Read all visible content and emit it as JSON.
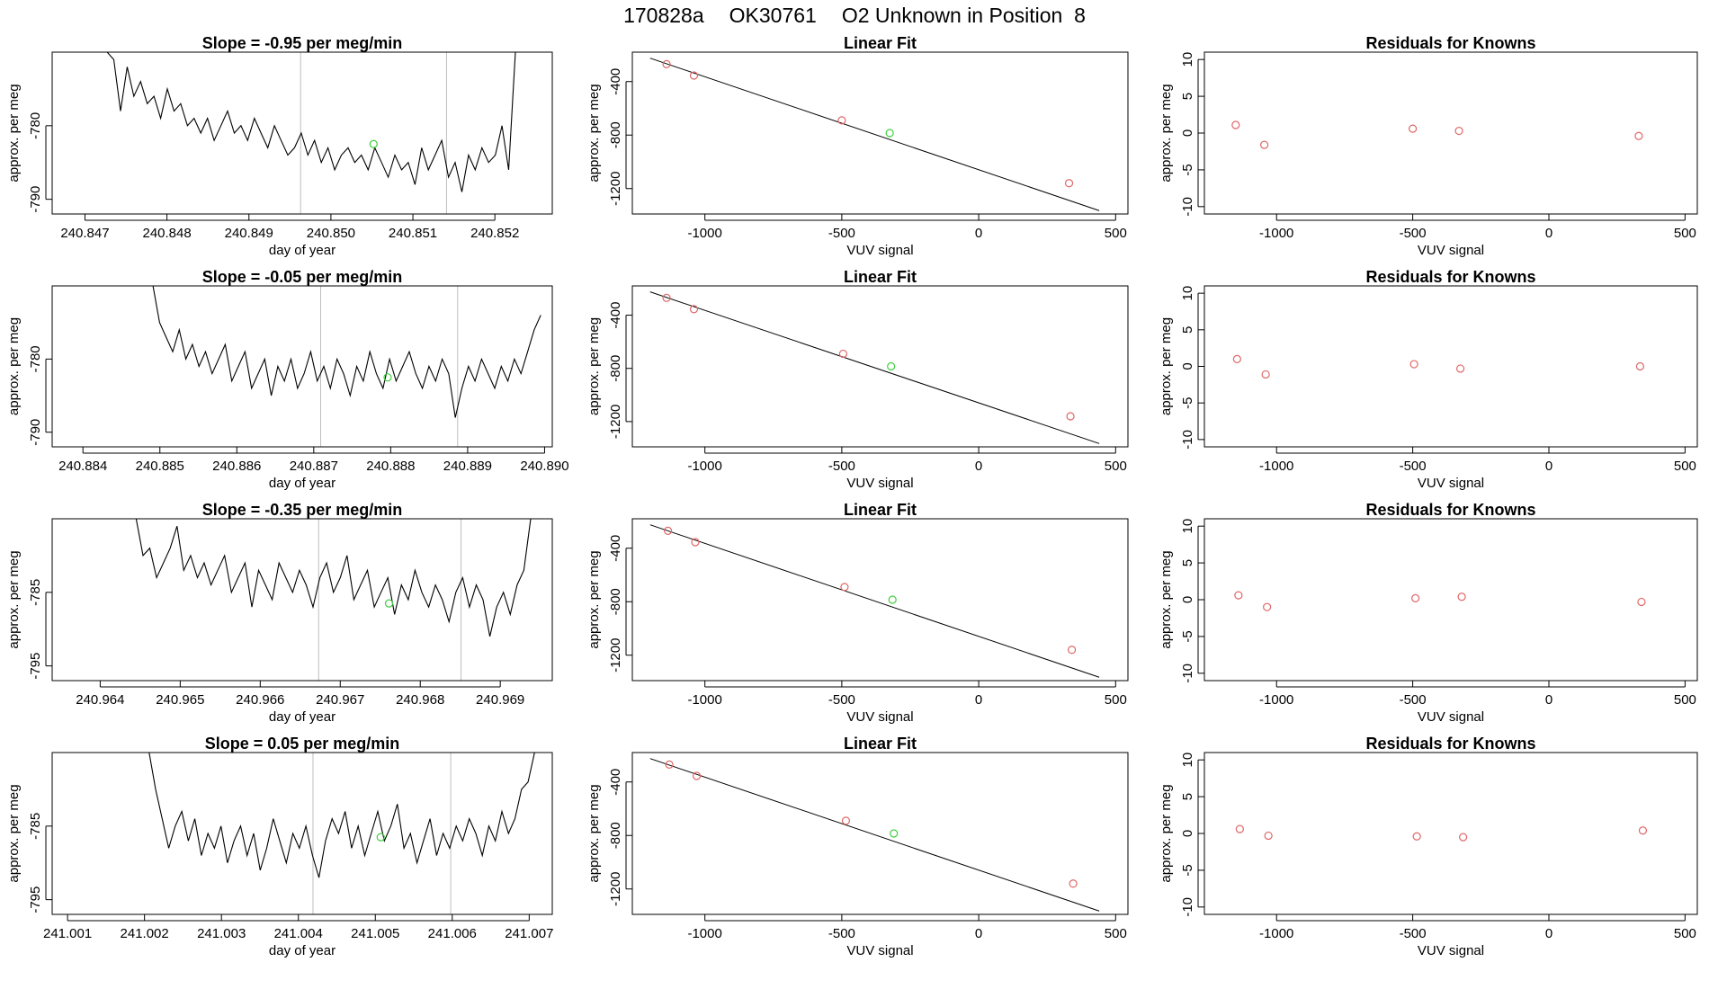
{
  "header": {
    "date_code": "170828a",
    "tank_id": "OK30761",
    "description": "O2 Unknown in Position  8"
  },
  "colors": {
    "trace": "#000000",
    "marker_vline": "#bdbdbd",
    "known_point": "#e06666",
    "unknown_point": "#3fcf3f",
    "fit_line": "#000000"
  },
  "chart_data": [
    {
      "type": "line",
      "panel": "timeseries",
      "row": 1,
      "title": "Slope =  -0.95  per meg/min",
      "xlabel": "day of year",
      "ylabel": "approx. per meg",
      "xlim": [
        240.8466,
        240.8527
      ],
      "ylim": [
        -792,
        -770
      ],
      "x_ticks": [
        240.847,
        240.848,
        240.849,
        240.85,
        240.851,
        240.852
      ],
      "x_tick_labels": [
        "240.847",
        "240.848",
        "240.849",
        "240.850",
        "240.851",
        "240.852"
      ],
      "y_ticks": [
        -790,
        -780
      ],
      "y_tick_labels": [
        "-790",
        "-780"
      ],
      "trace_x_range": [
        240.84727,
        240.85225
      ],
      "trace_y": [
        -770,
        -771,
        -778,
        -772,
        -776,
        -774,
        -777,
        -776,
        -779,
        -775,
        -778,
        -777,
        -780,
        -779,
        -781,
        -779,
        -782,
        -780,
        -778,
        -781,
        -780,
        -782,
        -779,
        -781,
        -783,
        -780,
        -782,
        -784,
        -783,
        -781,
        -784,
        -782,
        -785,
        -783,
        -786,
        -784,
        -783,
        -785,
        -784,
        -786,
        -783,
        -785,
        -787,
        -784,
        -786,
        -785,
        -788,
        -783,
        -786,
        -784,
        -782,
        -787,
        -785,
        -789,
        -784,
        -786,
        -783,
        -785,
        -784,
        -780,
        -786,
        -770
      ],
      "vlines": [
        240.84963,
        240.85141
      ],
      "unknown_point": {
        "x": 240.85052,
        "y": -782.5
      }
    },
    {
      "type": "scatter",
      "panel": "linear_fit",
      "row": 1,
      "title": "Linear Fit",
      "xlabel": "VUV signal",
      "ylabel": "approx. per meg",
      "xlim": [
        -1265,
        545
      ],
      "ylim": [
        -1390,
        -180
      ],
      "x_ticks": [
        -1000,
        -500,
        0,
        500
      ],
      "x_tick_labels": [
        "-1000",
        "-500",
        "0",
        "500"
      ],
      "y_ticks": [
        -1200,
        -800,
        -400
      ],
      "y_tick_labels": [
        "-1200",
        "-800",
        "-400"
      ],
      "fit_line": {
        "x": [
          -1200,
          440
        ],
        "y": [
          -225,
          -1365
        ]
      },
      "knowns": [
        {
          "x": -1140,
          "y": -270
        },
        {
          "x": -1040,
          "y": -355
        },
        {
          "x": -500,
          "y": -690
        },
        {
          "x": 330,
          "y": -1160
        }
      ],
      "unknown": {
        "x": -325,
        "y": -785
      }
    },
    {
      "type": "scatter",
      "panel": "residuals",
      "row": 1,
      "title": "Residuals for Knowns",
      "xlabel": "VUV signal",
      "ylabel": "approx. per meg",
      "xlim": [
        -1265,
        545
      ],
      "ylim": [
        -11,
        11
      ],
      "x_ticks": [
        -1000,
        -500,
        0,
        500
      ],
      "x_tick_labels": [
        "-1000",
        "-500",
        "0",
        "500"
      ],
      "y_ticks": [
        -10,
        -5,
        0,
        5,
        10
      ],
      "y_tick_labels": [
        "-10",
        "-5",
        "0",
        "5",
        "10"
      ],
      "points": [
        {
          "x": -1150,
          "y": 1.1
        },
        {
          "x": -1045,
          "y": -1.6
        },
        {
          "x": -500,
          "y": 0.6
        },
        {
          "x": -330,
          "y": 0.3
        },
        {
          "x": 330,
          "y": -0.4
        }
      ]
    },
    {
      "type": "line",
      "panel": "timeseries",
      "row": 2,
      "title": "Slope =  -0.05  per meg/min",
      "xlabel": "day of year",
      "ylabel": "approx. per meg",
      "xlim": [
        240.8836,
        240.8901
      ],
      "ylim": [
        -792,
        -770
      ],
      "x_ticks": [
        240.884,
        240.885,
        240.886,
        240.887,
        240.888,
        240.889,
        240.89
      ],
      "x_tick_labels": [
        "240.884",
        "240.885",
        "240.886",
        "240.887",
        "240.888",
        "240.889",
        "240.890"
      ],
      "y_ticks": [
        -790,
        -780
      ],
      "y_tick_labels": [
        "-790",
        "-780"
      ],
      "trace_x_range": [
        240.88491,
        240.88995
      ],
      "trace_y": [
        -770,
        -775,
        -777,
        -779,
        -776,
        -780,
        -778,
        -781,
        -779,
        -782,
        -780,
        -778,
        -783,
        -781,
        -779,
        -784,
        -782,
        -780,
        -785,
        -781,
        -783,
        -780,
        -784,
        -782,
        -779,
        -783,
        -781,
        -784,
        -780,
        -782,
        -785,
        -781,
        -783,
        -779,
        -782,
        -784,
        -780,
        -783,
        -781,
        -779,
        -782,
        -784,
        -781,
        -783,
        -780,
        -782,
        -788,
        -784,
        -781,
        -783,
        -780,
        -782,
        -784,
        -781,
        -783,
        -780,
        -782,
        -779,
        -776,
        -774
      ],
      "vlines": [
        240.88709,
        240.88887
      ],
      "unknown_point": {
        "x": 240.88796,
        "y": -782.5
      }
    },
    {
      "type": "scatter",
      "panel": "linear_fit",
      "row": 2,
      "title": "Linear Fit",
      "xlabel": "VUV signal",
      "ylabel": "approx. per meg",
      "xlim": [
        -1265,
        545
      ],
      "ylim": [
        -1390,
        -180
      ],
      "x_ticks": [
        -1000,
        -500,
        0,
        500
      ],
      "x_tick_labels": [
        "-1000",
        "-500",
        "0",
        "500"
      ],
      "y_ticks": [
        -1200,
        -800,
        -400
      ],
      "y_tick_labels": [
        "-1200",
        "-800",
        "-400"
      ],
      "fit_line": {
        "x": [
          -1200,
          440
        ],
        "y": [
          -225,
          -1365
        ]
      },
      "knowns": [
        {
          "x": -1140,
          "y": -270
        },
        {
          "x": -1040,
          "y": -355
        },
        {
          "x": -495,
          "y": -690
        },
        {
          "x": 335,
          "y": -1160
        }
      ],
      "unknown": {
        "x": -320,
        "y": -785
      }
    },
    {
      "type": "scatter",
      "panel": "residuals",
      "row": 2,
      "title": "Residuals for Knowns",
      "xlabel": "VUV signal",
      "ylabel": "approx. per meg",
      "xlim": [
        -1265,
        545
      ],
      "ylim": [
        -11,
        11
      ],
      "x_ticks": [
        -1000,
        -500,
        0,
        500
      ],
      "x_tick_labels": [
        "-1000",
        "-500",
        "0",
        "500"
      ],
      "y_ticks": [
        -10,
        -5,
        0,
        5,
        10
      ],
      "y_tick_labels": [
        "-10",
        "-5",
        "0",
        "5",
        "10"
      ],
      "points": [
        {
          "x": -1145,
          "y": 1.0
        },
        {
          "x": -1040,
          "y": -1.1
        },
        {
          "x": -495,
          "y": 0.3
        },
        {
          "x": -325,
          "y": -0.3
        },
        {
          "x": 335,
          "y": 0.0
        }
      ]
    },
    {
      "type": "line",
      "panel": "timeseries",
      "row": 3,
      "title": "Slope =  -0.35  per meg/min",
      "xlabel": "day of year",
      "ylabel": "approx. per meg",
      "xlim": [
        240.9634,
        240.96965
      ],
      "ylim": [
        -797,
        -775
      ],
      "x_ticks": [
        240.964,
        240.965,
        240.966,
        240.967,
        240.968,
        240.969
      ],
      "x_tick_labels": [
        "240.964",
        "240.965",
        "240.966",
        "240.967",
        "240.968",
        "240.969"
      ],
      "y_ticks": [
        -795,
        -785
      ],
      "y_tick_labels": [
        "-795",
        "-785"
      ],
      "trace_x_range": [
        240.96445,
        240.96938
      ],
      "trace_y": [
        -775,
        -780,
        -779,
        -783,
        -781,
        -779,
        -776,
        -782,
        -780,
        -783,
        -781,
        -784,
        -782,
        -780,
        -785,
        -783,
        -781,
        -787,
        -782,
        -784,
        -786,
        -781,
        -783,
        -785,
        -782,
        -784,
        -787,
        -783,
        -781,
        -785,
        -783,
        -780,
        -786,
        -784,
        -782,
        -787,
        -785,
        -783,
        -788,
        -784,
        -786,
        -782,
        -785,
        -787,
        -784,
        -786,
        -789,
        -785,
        -783,
        -787,
        -784,
        -786,
        -791,
        -787,
        -785,
        -788,
        -784,
        -782,
        -775
      ],
      "vlines": [
        240.96673,
        240.96851
      ],
      "unknown_point": {
        "x": 240.96761,
        "y": -786.5
      }
    },
    {
      "type": "scatter",
      "panel": "linear_fit",
      "row": 3,
      "title": "Linear Fit",
      "xlabel": "VUV signal",
      "ylabel": "approx. per meg",
      "xlim": [
        -1265,
        545
      ],
      "ylim": [
        -1390,
        -180
      ],
      "x_ticks": [
        -1000,
        -500,
        0,
        500
      ],
      "x_tick_labels": [
        "-1000",
        "-500",
        "0",
        "500"
      ],
      "y_ticks": [
        -1200,
        -800,
        -400
      ],
      "y_tick_labels": [
        "-1200",
        "-800",
        "-400"
      ],
      "fit_line": {
        "x": [
          -1200,
          440
        ],
        "y": [
          -225,
          -1365
        ]
      },
      "knowns": [
        {
          "x": -1135,
          "y": -270
        },
        {
          "x": -1035,
          "y": -355
        },
        {
          "x": -490,
          "y": -690
        },
        {
          "x": 340,
          "y": -1160
        }
      ],
      "unknown": {
        "x": -315,
        "y": -785
      }
    },
    {
      "type": "scatter",
      "panel": "residuals",
      "row": 3,
      "title": "Residuals for Knowns",
      "xlabel": "VUV signal",
      "ylabel": "approx. per meg",
      "xlim": [
        -1265,
        545
      ],
      "ylim": [
        -11,
        11
      ],
      "x_ticks": [
        -1000,
        -500,
        0,
        500
      ],
      "x_tick_labels": [
        "-1000",
        "-500",
        "0",
        "500"
      ],
      "y_ticks": [
        -10,
        -5,
        0,
        5,
        10
      ],
      "y_tick_labels": [
        "-10",
        "-5",
        "0",
        "5",
        "10"
      ],
      "points": [
        {
          "x": -1140,
          "y": 0.6
        },
        {
          "x": -1035,
          "y": -1.0
        },
        {
          "x": -490,
          "y": 0.2
        },
        {
          "x": -320,
          "y": 0.4
        },
        {
          "x": 340,
          "y": -0.3
        }
      ]
    },
    {
      "type": "line",
      "panel": "timeseries",
      "row": 4,
      "title": "Slope =  0.05  per meg/min",
      "xlabel": "day of year",
      "ylabel": "approx. per meg",
      "xlim": [
        241.0008,
        241.0073
      ],
      "ylim": [
        -797,
        -775
      ],
      "x_ticks": [
        241.001,
        241.002,
        241.003,
        241.004,
        241.005,
        241.006,
        241.007
      ],
      "x_tick_labels": [
        "241.001",
        "241.002",
        "241.003",
        "241.004",
        "241.005",
        "241.006",
        "241.007"
      ],
      "y_ticks": [
        -795,
        -785
      ],
      "y_tick_labels": [
        "-795",
        "-785"
      ],
      "trace_x_range": [
        241.00206,
        241.00707
      ],
      "trace_y": [
        -775,
        -780,
        -784,
        -788,
        -785,
        -783,
        -787,
        -784,
        -789,
        -786,
        -788,
        -785,
        -790,
        -787,
        -785,
        -789,
        -786,
        -791,
        -788,
        -784,
        -787,
        -790,
        -786,
        -788,
        -785,
        -789,
        -792,
        -787,
        -784,
        -786,
        -783,
        -788,
        -785,
        -789,
        -786,
        -783,
        -787,
        -785,
        -782,
        -788,
        -786,
        -790,
        -787,
        -784,
        -789,
        -786,
        -788,
        -785,
        -787,
        -784,
        -786,
        -789,
        -785,
        -787,
        -783,
        -786,
        -784,
        -780,
        -779,
        -775
      ],
      "vlines": [
        241.00419,
        241.00598
      ],
      "unknown_point": {
        "x": 241.00507,
        "y": -786.5
      }
    },
    {
      "type": "scatter",
      "panel": "linear_fit",
      "row": 4,
      "title": "Linear Fit",
      "xlabel": "VUV signal",
      "ylabel": "approx. per meg",
      "xlim": [
        -1265,
        545
      ],
      "ylim": [
        -1390,
        -180
      ],
      "x_ticks": [
        -1000,
        -500,
        0,
        500
      ],
      "x_tick_labels": [
        "-1000",
        "-500",
        "0",
        "500"
      ],
      "y_ticks": [
        -1200,
        -800,
        -400
      ],
      "y_tick_labels": [
        "-1200",
        "-800",
        "-400"
      ],
      "fit_line": {
        "x": [
          -1200,
          440
        ],
        "y": [
          -225,
          -1365
        ]
      },
      "knowns": [
        {
          "x": -1130,
          "y": -270
        },
        {
          "x": -1030,
          "y": -355
        },
        {
          "x": -485,
          "y": -690
        },
        {
          "x": 345,
          "y": -1160
        }
      ],
      "unknown": {
        "x": -310,
        "y": -785
      }
    },
    {
      "type": "scatter",
      "panel": "residuals",
      "row": 4,
      "title": "Residuals for Knowns",
      "xlabel": "VUV signal",
      "ylabel": "approx. per meg",
      "xlim": [
        -1265,
        545
      ],
      "ylim": [
        -11,
        11
      ],
      "x_ticks": [
        -1000,
        -500,
        0,
        500
      ],
      "x_tick_labels": [
        "-1000",
        "-500",
        "0",
        "500"
      ],
      "y_ticks": [
        -10,
        -5,
        0,
        5,
        10
      ],
      "y_tick_labels": [
        "-10",
        "-5",
        "0",
        "5",
        "10"
      ],
      "points": [
        {
          "x": -1135,
          "y": 0.6
        },
        {
          "x": -1030,
          "y": -0.3
        },
        {
          "x": -485,
          "y": -0.4
        },
        {
          "x": -315,
          "y": -0.5
        },
        {
          "x": 345,
          "y": 0.4
        }
      ]
    }
  ]
}
